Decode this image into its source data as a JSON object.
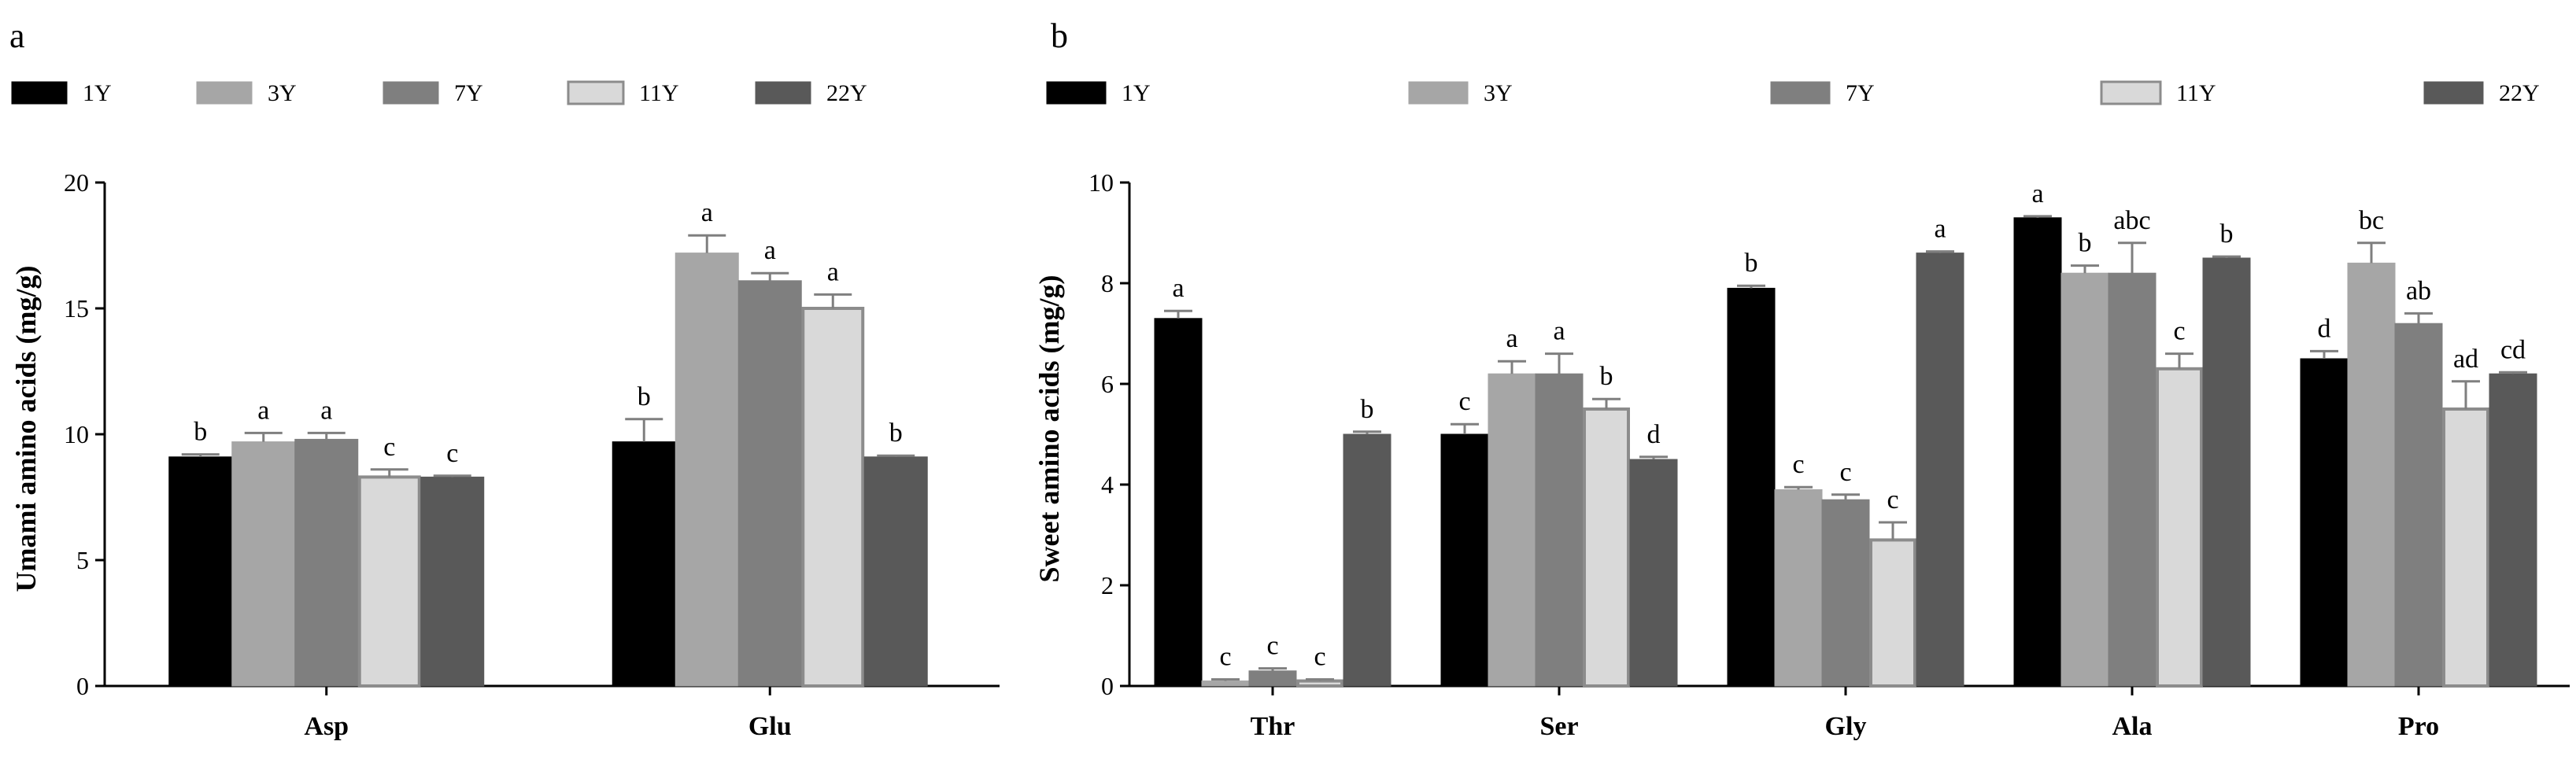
{
  "colors": {
    "1Y": "#000000",
    "3Y": "#a6a6a6",
    "7Y": "#7f7f7f",
    "11Y": "#d9d9d9",
    "22Y": "#595959",
    "error": "#7f7f7f"
  },
  "chart_data": [
    {
      "type": "bar",
      "panel": "a",
      "title": "",
      "xlabel": "",
      "ylabel": "Umami amino acids (mg/g)",
      "ylim": [
        0,
        20
      ],
      "yticks": [
        0,
        5,
        10,
        15,
        20
      ],
      "categories": [
        "Asp",
        "Glu"
      ],
      "series": [
        {
          "name": "1Y",
          "values": [
            9.1,
            9.7
          ],
          "errors": [
            0.1,
            0.9
          ],
          "letters": [
            "b",
            "b"
          ]
        },
        {
          "name": "3Y",
          "values": [
            9.7,
            17.2
          ],
          "errors": [
            0.35,
            0.7
          ],
          "letters": [
            "a",
            "a"
          ]
        },
        {
          "name": "7Y",
          "values": [
            9.8,
            16.1
          ],
          "errors": [
            0.25,
            0.3
          ],
          "letters": [
            "a",
            "a"
          ]
        },
        {
          "name": "11Y",
          "values": [
            8.3,
            15.0
          ],
          "errors": [
            0.3,
            0.55
          ],
          "letters": [
            "c",
            "a"
          ]
        },
        {
          "name": "22Y",
          "values": [
            8.3,
            9.1
          ],
          "errors": [
            0.05,
            0.05
          ],
          "letters": [
            "c",
            "b"
          ]
        }
      ]
    },
    {
      "type": "bar",
      "panel": "b",
      "title": "",
      "xlabel": "",
      "ylabel": "Sweet amino acids (mg/g)",
      "ylim": [
        0,
        10
      ],
      "yticks": [
        0,
        2,
        4,
        6,
        8,
        10
      ],
      "categories": [
        "Thr",
        "Ser",
        "Gly",
        "Ala",
        "Pro"
      ],
      "series": [
        {
          "name": "1Y",
          "values": [
            7.3,
            5.0,
            7.9,
            9.3,
            6.5
          ],
          "errors": [
            0.15,
            0.2,
            0.05,
            0.03,
            0.15
          ],
          "letters": [
            "a",
            "c",
            "b",
            "a",
            "d"
          ]
        },
        {
          "name": "3Y",
          "values": [
            0.1,
            6.2,
            3.9,
            8.2,
            8.4
          ],
          "errors": [
            0.03,
            0.25,
            0.05,
            0.15,
            0.4
          ],
          "letters": [
            "c",
            "a",
            "c",
            "b",
            "bc"
          ]
        },
        {
          "name": "7Y",
          "values": [
            0.3,
            6.2,
            3.7,
            8.2,
            7.2
          ],
          "errors": [
            0.05,
            0.4,
            0.1,
            0.6,
            0.2
          ],
          "letters": [
            "c",
            "a",
            "c",
            "abc",
            "ab"
          ]
        },
        {
          "name": "11Y",
          "values": [
            0.1,
            5.5,
            2.9,
            6.3,
            5.5
          ],
          "errors": [
            0.03,
            0.2,
            0.35,
            0.3,
            0.55
          ],
          "letters": [
            "c",
            "b",
            "c",
            "c",
            "ad"
          ]
        },
        {
          "name": "22Y",
          "values": [
            5.0,
            4.5,
            8.6,
            8.5,
            6.2
          ],
          "errors": [
            0.05,
            0.05,
            0.03,
            0.03,
            0.03
          ],
          "letters": [
            "b",
            "d",
            "a",
            "b",
            "cd"
          ]
        }
      ]
    }
  ]
}
